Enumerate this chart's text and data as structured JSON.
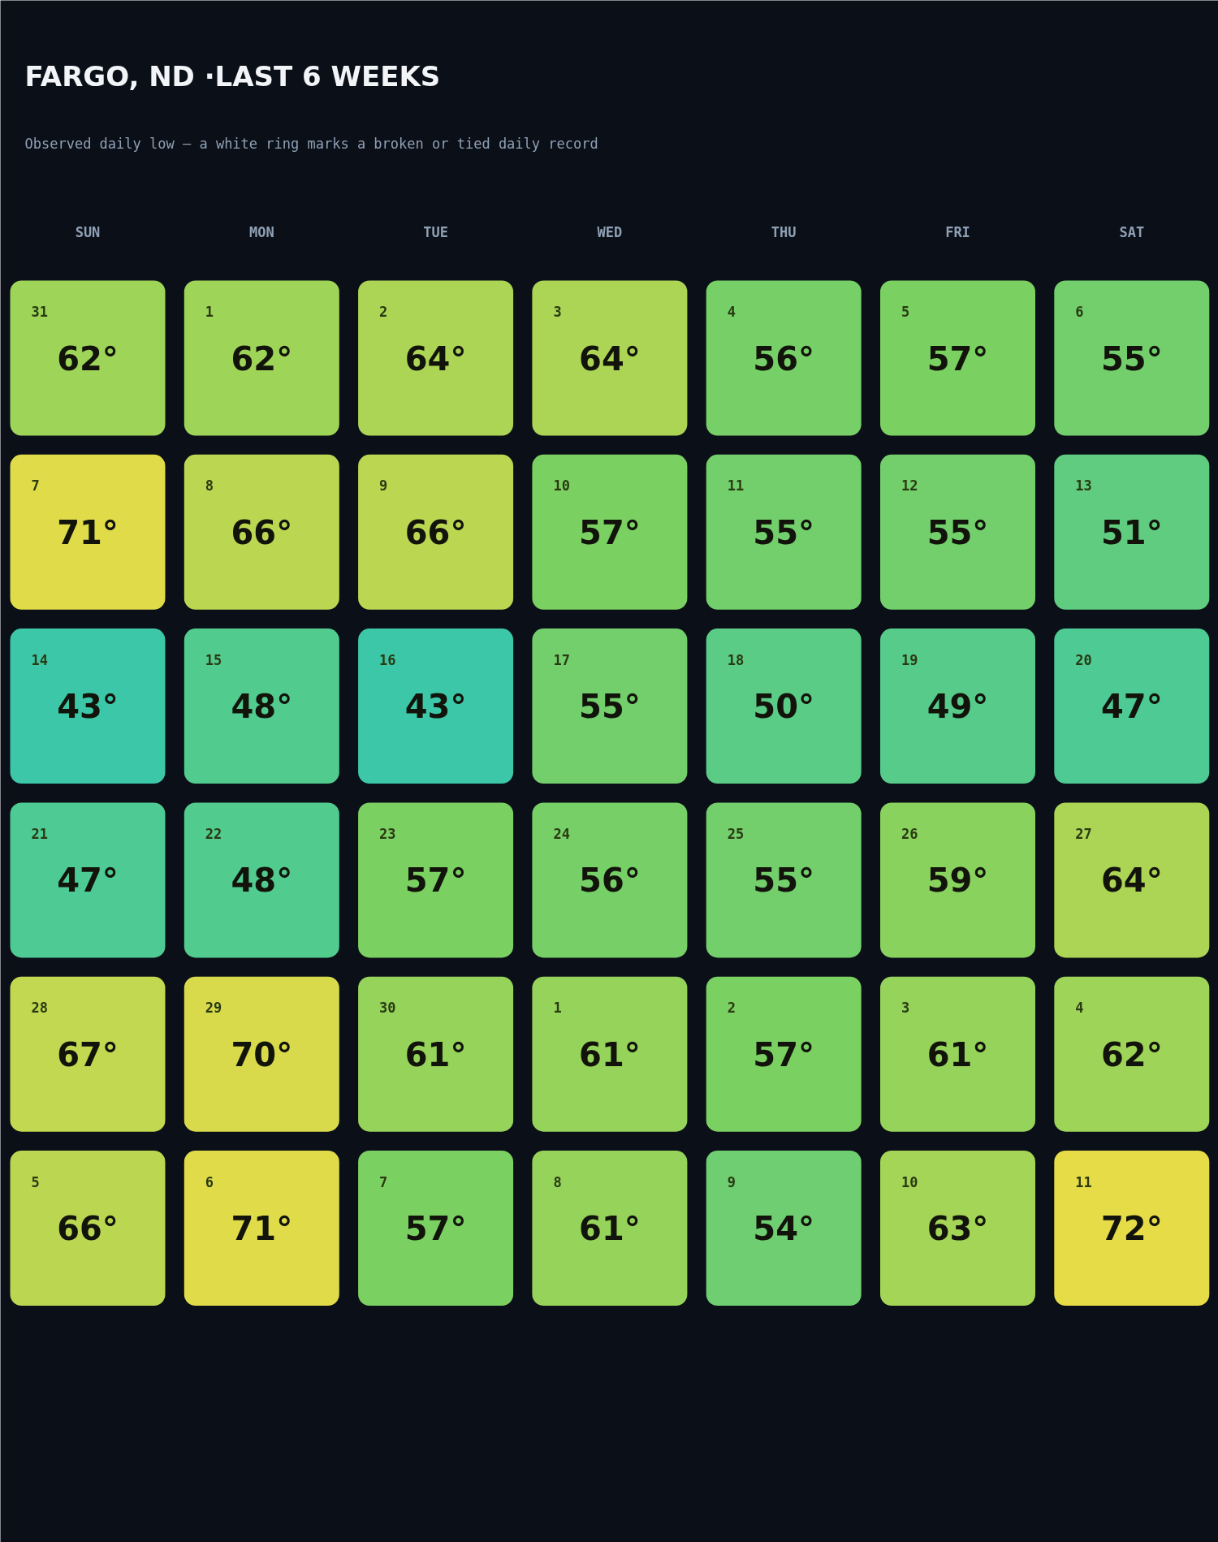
{
  "chart_data": {
    "type": "heatmap",
    "title": "FARGO, ND ·LAST 6 WEEKS",
    "subtitle": "Observed daily low — a white ring marks a broken or tied daily record",
    "categories": [
      "SUN",
      "MON",
      "TUE",
      "WED",
      "THU",
      "FRI",
      "SAT"
    ],
    "y_categories": [
      null,
      null,
      null,
      null,
      null,
      null
    ],
    "cells": [
      [
        62,
        62,
        64,
        64,
        56,
        57,
        55
      ],
      [
        71,
        66,
        66,
        57,
        55,
        55,
        51
      ],
      [
        43,
        48,
        43,
        55,
        50,
        49,
        47
      ],
      [
        47,
        48,
        57,
        56,
        55,
        59,
        64
      ],
      [
        67,
        70,
        61,
        61,
        57,
        61,
        62
      ],
      [
        66,
        71,
        57,
        61,
        54,
        63,
        72
      ]
    ],
    "cell_labels": [
      [
        "62°",
        "62°",
        "64°",
        "64°",
        "56°",
        "57°",
        "55°"
      ],
      [
        "71°",
        "66°",
        "66°",
        "57°",
        "55°",
        "55°",
        "51°"
      ],
      [
        "43°",
        "48°",
        "43°",
        "55°",
        "50°",
        "49°",
        "47°"
      ],
      [
        "47°",
        "48°",
        "57°",
        "56°",
        "55°",
        "59°",
        "64°"
      ],
      [
        "67°",
        "70°",
        "61°",
        "61°",
        "57°",
        "61°",
        "62°"
      ],
      [
        "66°",
        "71°",
        "57°",
        "61°",
        "54°",
        "63°",
        "72°"
      ]
    ],
    "annotations": [
      "31",
      "1",
      "2",
      "3",
      "4",
      "5",
      "6",
      "7",
      "8",
      "9",
      "10",
      "11",
      "12",
      "13",
      "14",
      "15",
      "16",
      "17",
      "18",
      "19",
      "20",
      "21",
      "22",
      "23",
      "24",
      "25",
      "26",
      "27",
      "28",
      "29",
      "30",
      "1",
      "2",
      "3",
      "4",
      "5",
      "6",
      "7",
      "8",
      "9",
      "10",
      "11"
    ]
  }
}
